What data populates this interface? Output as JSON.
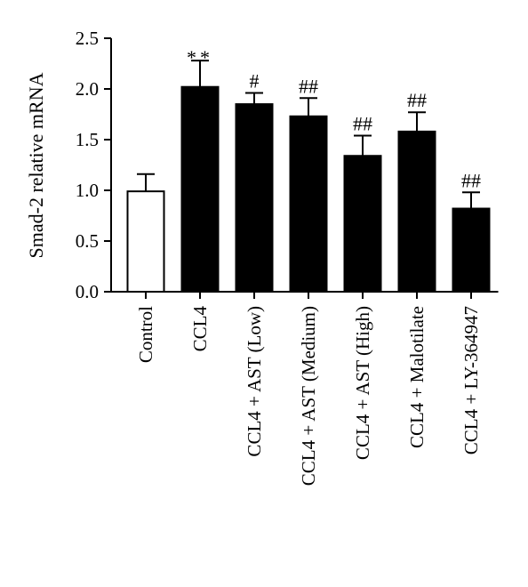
{
  "chart_data": {
    "type": "bar",
    "title": "",
    "xlabel": "",
    "ylabel": "Smad-2 relative mRNA",
    "ylim": [
      0,
      2.5
    ],
    "yticks": [
      "0.0",
      "0.5",
      "1.0",
      "1.5",
      "2.0",
      "2.5"
    ],
    "categories": [
      "Control",
      "CCL4",
      "CCL4 + AST (Low)",
      "CCL4 + AST (Medium)",
      "CCL4 + AST (High)",
      "CCL4 + Malotilate",
      "CCL4 + LY-364947"
    ],
    "values": [
      0.99,
      2.02,
      1.85,
      1.73,
      1.34,
      1.58,
      0.82
    ],
    "errors": [
      0.17,
      0.26,
      0.11,
      0.18,
      0.2,
      0.19,
      0.16
    ],
    "bar_fill": [
      "#ffffff",
      "#000000",
      "#000000",
      "#000000",
      "#000000",
      "#000000",
      "#000000"
    ],
    "annotations": [
      "",
      "**",
      "#",
      "##",
      "##",
      "##",
      "##"
    ],
    "grid": false,
    "legend": "none"
  }
}
